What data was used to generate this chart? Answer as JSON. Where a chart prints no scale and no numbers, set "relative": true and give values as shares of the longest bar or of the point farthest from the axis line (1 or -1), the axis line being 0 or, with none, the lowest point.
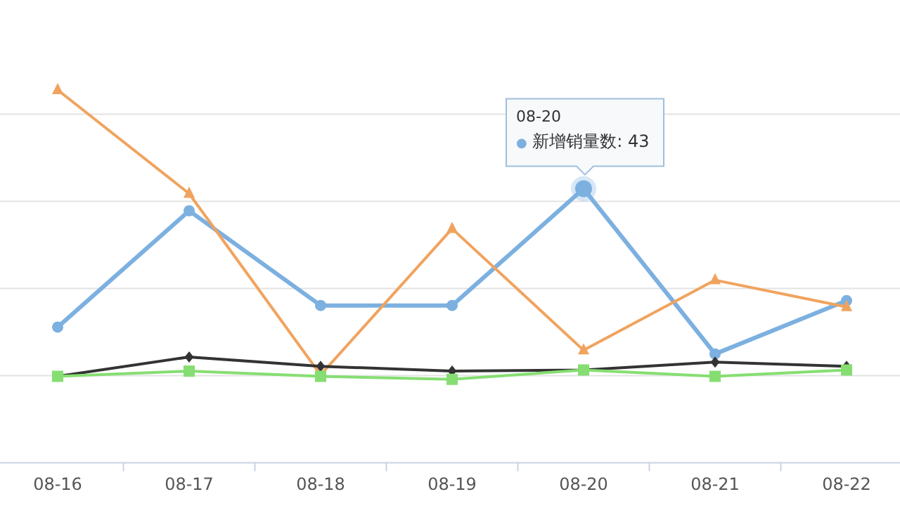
{
  "chart_data": {
    "type": "line",
    "relative": true,
    "grid": "y",
    "categories": [
      "08-16",
      "08-17",
      "08-18",
      "08-19",
      "08-20",
      "08-21",
      "08-22"
    ],
    "series": [
      {
        "color": "#7cb0e0",
        "marker": "circle",
        "values": [
          0.364,
          0.676,
          0.422,
          0.422,
          0.735,
          0.292,
          0.435
        ]
      },
      {
        "color": "#f0a35e",
        "marker": "triangle",
        "values": [
          1.0,
          0.722,
          0.236,
          0.628,
          0.302,
          0.49,
          0.418
        ]
      },
      {
        "color": "#333333",
        "marker": "diamond",
        "values": [
          0.232,
          0.284,
          0.259,
          0.246,
          0.249,
          0.27,
          0.259
        ]
      },
      {
        "color": "#86de72",
        "marker": "square",
        "values": [
          0.232,
          0.246,
          0.232,
          0.224,
          0.249,
          0.232,
          0.249
        ]
      }
    ],
    "annotations": [
      "08-20",
      "● 新增销量数: 43"
    ]
  }
}
